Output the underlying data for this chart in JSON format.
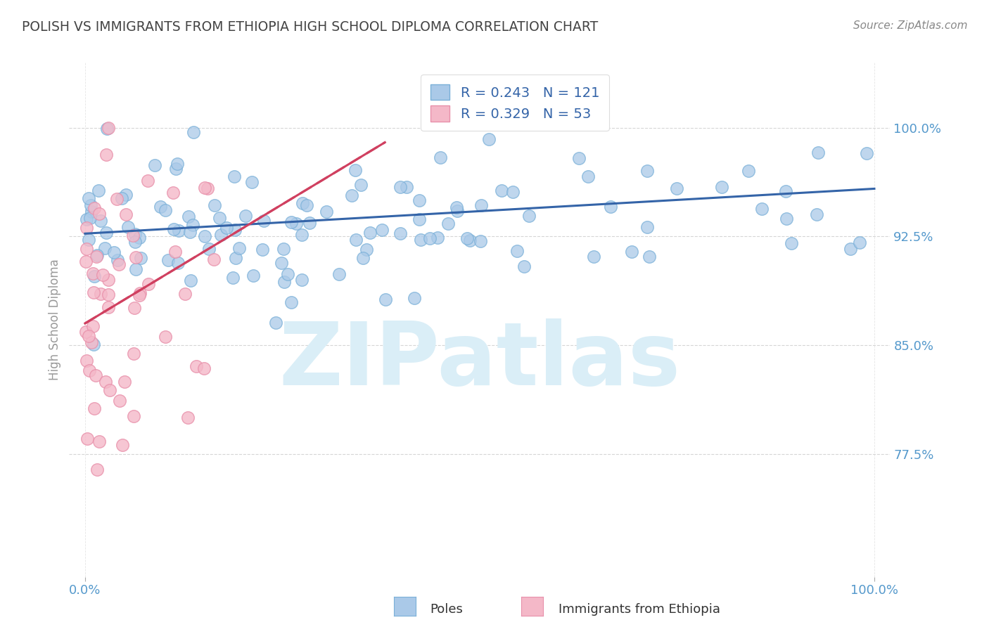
{
  "title": "POLISH VS IMMIGRANTS FROM ETHIOPIA HIGH SCHOOL DIPLOMA CORRELATION CHART",
  "source": "Source: ZipAtlas.com",
  "ylabel": "High School Diploma",
  "yticks": [
    0.775,
    0.85,
    0.925,
    1.0
  ],
  "ytick_labels": [
    "77.5%",
    "85.0%",
    "92.5%",
    "100.0%"
  ],
  "xlim": [
    -0.02,
    1.02
  ],
  "ylim": [
    0.69,
    1.045
  ],
  "blue_R": 0.243,
  "blue_N": 121,
  "pink_R": 0.329,
  "pink_N": 53,
  "blue_dot_color": "#aac9e8",
  "blue_dot_edge": "#7ab0d8",
  "pink_dot_color": "#f4b8c8",
  "pink_dot_edge": "#e890aa",
  "blue_line_color": "#3464a8",
  "pink_line_color": "#d04060",
  "title_color": "#444444",
  "axis_label_color": "#5599cc",
  "grid_color": "#cccccc",
  "watermark_color": "#daeef7",
  "watermark_text": "ZIPatlas",
  "legend_label_blue": "Poles",
  "legend_label_pink": "Immigrants from Ethiopia",
  "background_color": "#ffffff",
  "seed": 7,
  "blue_line_x0": 0.0,
  "blue_line_x1": 1.0,
  "blue_line_y0": 0.927,
  "blue_line_y1": 0.958,
  "pink_line_x0": 0.0,
  "pink_line_x1": 0.38,
  "pink_line_y0": 0.865,
  "pink_line_y1": 0.99
}
